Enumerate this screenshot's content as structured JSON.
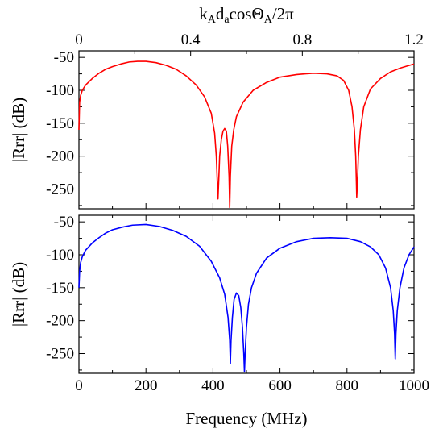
{
  "top_axis": {
    "label_parts": [
      "k",
      "A",
      "d",
      "a",
      "cosΘ",
      "A",
      "/2π"
    ],
    "ticks": [
      0,
      0.4,
      0.8,
      1.2
    ],
    "tick_labels": [
      "0",
      "0.4",
      "0.8",
      "1.2"
    ],
    "range": [
      0,
      1.2
    ]
  },
  "bottom_axis": {
    "label": "Frequency (MHz)",
    "ticks": [
      0,
      200,
      400,
      600,
      800,
      1000
    ],
    "tick_labels": [
      "0",
      "200",
      "400",
      "600",
      "800",
      "1000"
    ],
    "range": [
      0,
      1000
    ]
  },
  "chart_data": [
    {
      "type": "line",
      "panel": "top",
      "ylabel": "|Rrr| (dB)",
      "xlim": [
        0,
        1000
      ],
      "ylim": [
        -280,
        -40
      ],
      "yticks": [
        -50,
        -100,
        -150,
        -200,
        -250
      ],
      "ytick_labels": [
        "-50",
        "-100",
        "-150",
        "-200",
        "-250"
      ],
      "grid": false,
      "series": [
        {
          "color": "#ff0000",
          "points": [
            [
              0,
              -160
            ],
            [
              2,
              -118
            ],
            [
              5,
              -108
            ],
            [
              10,
              -100
            ],
            [
              20,
              -92
            ],
            [
              40,
              -82
            ],
            [
              60,
              -74
            ],
            [
              80,
              -68
            ],
            [
              100,
              -64
            ],
            [
              125,
              -60
            ],
            [
              150,
              -57
            ],
            [
              175,
              -56
            ],
            [
              200,
              -56
            ],
            [
              230,
              -58
            ],
            [
              260,
              -62
            ],
            [
              290,
              -68
            ],
            [
              320,
              -78
            ],
            [
              350,
              -92
            ],
            [
              375,
              -110
            ],
            [
              395,
              -135
            ],
            [
              405,
              -165
            ],
            [
              410,
              -200
            ],
            [
              413,
              -240
            ],
            [
              415,
              -265
            ],
            [
              417,
              -240
            ],
            [
              420,
              -200
            ],
            [
              425,
              -175
            ],
            [
              430,
              -162
            ],
            [
              435,
              -158
            ],
            [
              440,
              -162
            ],
            [
              444,
              -185
            ],
            [
              448,
              -230
            ],
            [
              450,
              -278
            ],
            [
              452,
              -230
            ],
            [
              456,
              -185
            ],
            [
              462,
              -160
            ],
            [
              470,
              -140
            ],
            [
              490,
              -118
            ],
            [
              520,
              -100
            ],
            [
              560,
              -88
            ],
            [
              600,
              -80
            ],
            [
              650,
              -76
            ],
            [
              700,
              -74
            ],
            [
              740,
              -75
            ],
            [
              770,
              -78
            ],
            [
              790,
              -85
            ],
            [
              805,
              -100
            ],
            [
              815,
              -125
            ],
            [
              822,
              -160
            ],
            [
              826,
              -200
            ],
            [
              828,
              -240
            ],
            [
              829,
              -262
            ],
            [
              831,
              -240
            ],
            [
              834,
              -200
            ],
            [
              840,
              -160
            ],
            [
              850,
              -125
            ],
            [
              870,
              -98
            ],
            [
              900,
              -82
            ],
            [
              930,
              -72
            ],
            [
              960,
              -66
            ],
            [
              980,
              -63
            ],
            [
              1000,
              -60
            ]
          ]
        }
      ]
    },
    {
      "type": "line",
      "panel": "bottom",
      "xlabel": "Frequency (MHz)",
      "ylabel": "|Rrr| (dB)",
      "xlim": [
        0,
        1000
      ],
      "ylim": [
        -280,
        -40
      ],
      "yticks": [
        -50,
        -100,
        -150,
        -200,
        -250
      ],
      "ytick_labels": [
        "-50",
        "-100",
        "-150",
        "-200",
        "-250"
      ],
      "grid": false,
      "series": [
        {
          "color": "#0000ff",
          "points": [
            [
              0,
              -150
            ],
            [
              2,
              -125
            ],
            [
              5,
              -112
            ],
            [
              10,
              -103
            ],
            [
              20,
              -93
            ],
            [
              40,
              -82
            ],
            [
              60,
              -74
            ],
            [
              80,
              -67
            ],
            [
              100,
              -62
            ],
            [
              130,
              -58
            ],
            [
              160,
              -55
            ],
            [
              200,
              -54
            ],
            [
              240,
              -57
            ],
            [
              280,
              -63
            ],
            [
              320,
              -72
            ],
            [
              360,
              -87
            ],
            [
              395,
              -110
            ],
            [
              420,
              -135
            ],
            [
              435,
              -160
            ],
            [
              445,
              -195
            ],
            [
              450,
              -230
            ],
            [
              452,
              -265
            ],
            [
              454,
              -230
            ],
            [
              458,
              -195
            ],
            [
              463,
              -168
            ],
            [
              470,
              -158
            ],
            [
              477,
              -162
            ],
            [
              483,
              -180
            ],
            [
              488,
              -210
            ],
            [
              492,
              -250
            ],
            [
              494,
              -278
            ],
            [
              496,
              -250
            ],
            [
              500,
              -210
            ],
            [
              506,
              -175
            ],
            [
              515,
              -150
            ],
            [
              530,
              -128
            ],
            [
              560,
              -105
            ],
            [
              600,
              -90
            ],
            [
              650,
              -80
            ],
            [
              700,
              -75
            ],
            [
              750,
              -74
            ],
            [
              800,
              -75
            ],
            [
              840,
              -80
            ],
            [
              870,
              -88
            ],
            [
              895,
              -100
            ],
            [
              915,
              -120
            ],
            [
              930,
              -150
            ],
            [
              938,
              -185
            ],
            [
              942,
              -220
            ],
            [
              944,
              -258
            ],
            [
              946,
              -220
            ],
            [
              950,
              -185
            ],
            [
              958,
              -150
            ],
            [
              970,
              -120
            ],
            [
              985,
              -100
            ],
            [
              1000,
              -88
            ]
          ]
        }
      ]
    }
  ]
}
